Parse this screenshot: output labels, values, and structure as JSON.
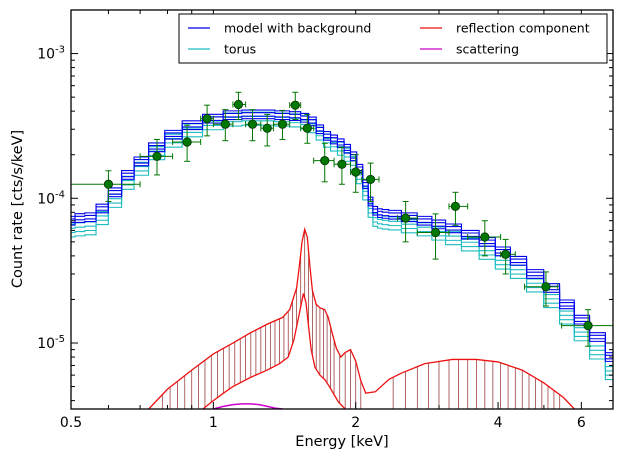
{
  "chart_data": {
    "type": "line",
    "xlabel": "Energy [keV]",
    "ylabel": "Count rate [cts/s/keV]",
    "xscale": "log",
    "yscale": "log",
    "xlim": [
      0.5,
      7.0
    ],
    "ylim": [
      3.5e-06,
      0.002
    ],
    "x_ticks": [
      {
        "value": 0.5,
        "label": "0.5"
      },
      {
        "value": 1,
        "label": "1"
      },
      {
        "value": 2,
        "label": "2"
      },
      {
        "value": 4,
        "label": "4"
      },
      {
        "value": 6,
        "label": "6"
      }
    ],
    "y_ticks": [
      {
        "value": 1e-05,
        "base": "10",
        "exp": "-5"
      },
      {
        "value": 0.0001,
        "base": "10",
        "exp": "-4"
      },
      {
        "value": 0.001,
        "base": "10",
        "exp": "-3"
      }
    ],
    "legend": {
      "placement": "top-right",
      "columns": 2,
      "entries": [
        {
          "label": "model with background",
          "color": "#0000ee"
        },
        {
          "label": "reflection component",
          "color": "#ee1111"
        },
        {
          "label": "torus",
          "color": "#1cbcc0"
        },
        {
          "label": "scattering",
          "color": "#cc00cc"
        }
      ]
    },
    "data_color": "#007700",
    "data_points": [
      {
        "x": 0.6,
        "y": 0.000125,
        "xlo": 0.5,
        "xhi": 0.7,
        "ylo": 9.5e-05,
        "yhi": 0.000155
      },
      {
        "x": 0.76,
        "y": 0.000195,
        "xlo": 0.7,
        "xhi": 0.82,
        "ylo": 0.000145,
        "yhi": 0.000255
      },
      {
        "x": 0.88,
        "y": 0.000245,
        "xlo": 0.82,
        "xhi": 0.94,
        "ylo": 0.00018,
        "yhi": 0.00032
      },
      {
        "x": 0.97,
        "y": 0.000355,
        "xlo": 0.94,
        "xhi": 1.0,
        "ylo": 0.00027,
        "yhi": 0.00044
      },
      {
        "x": 1.06,
        "y": 0.000325,
        "xlo": 1.0,
        "xhi": 1.1,
        "ylo": 0.00025,
        "yhi": 0.00041
      },
      {
        "x": 1.13,
        "y": 0.000445,
        "xlo": 1.1,
        "xhi": 1.17,
        "ylo": 0.00035,
        "yhi": 0.00054
      },
      {
        "x": 1.21,
        "y": 0.000325,
        "xlo": 1.17,
        "xhi": 1.26,
        "ylo": 0.00025,
        "yhi": 0.00041
      },
      {
        "x": 1.3,
        "y": 0.000305,
        "xlo": 1.26,
        "xhi": 1.34,
        "ylo": 0.00023,
        "yhi": 0.00038
      },
      {
        "x": 1.4,
        "y": 0.000325,
        "xlo": 1.34,
        "xhi": 1.45,
        "ylo": 0.000255,
        "yhi": 0.000405
      },
      {
        "x": 1.49,
        "y": 0.00044,
        "xlo": 1.45,
        "xhi": 1.53,
        "ylo": 0.00035,
        "yhi": 0.00054
      },
      {
        "x": 1.58,
        "y": 0.000305,
        "xlo": 1.53,
        "xhi": 1.63,
        "ylo": 0.00024,
        "yhi": 0.00038
      },
      {
        "x": 1.72,
        "y": 0.000182,
        "xlo": 1.63,
        "xhi": 1.8,
        "ylo": 0.00013,
        "yhi": 0.00024
      },
      {
        "x": 1.87,
        "y": 0.000172,
        "xlo": 1.8,
        "xhi": 1.95,
        "ylo": 0.000125,
        "yhi": 0.000225
      },
      {
        "x": 2.0,
        "y": 0.000152,
        "xlo": 1.95,
        "xhi": 2.06,
        "ylo": 0.00011,
        "yhi": 0.0002
      },
      {
        "x": 2.15,
        "y": 0.000135,
        "xlo": 2.06,
        "xhi": 2.24,
        "ylo": 9.5e-05,
        "yhi": 0.000175
      },
      {
        "x": 2.55,
        "y": 7.3e-05,
        "xlo": 2.45,
        "xhi": 2.7,
        "ylo": 5e-05,
        "yhi": 9.5e-05
      },
      {
        "x": 2.95,
        "y": 5.8e-05,
        "xlo": 2.7,
        "xhi": 3.15,
        "ylo": 3.8e-05,
        "yhi": 7.8e-05
      },
      {
        "x": 3.25,
        "y": 8.8e-05,
        "xlo": 3.15,
        "xhi": 3.45,
        "ylo": 6.5e-05,
        "yhi": 0.00011
      },
      {
        "x": 3.75,
        "y": 5.4e-05,
        "xlo": 3.45,
        "xhi": 4.05,
        "ylo": 4e-05,
        "yhi": 7e-05
      },
      {
        "x": 4.15,
        "y": 4.1e-05,
        "xlo": 4.05,
        "xhi": 4.35,
        "ylo": 3e-05,
        "yhi": 5.2e-05
      },
      {
        "x": 5.05,
        "y": 2.45e-05,
        "xlo": 4.55,
        "xhi": 5.35,
        "ylo": 1.8e-05,
        "yhi": 3.1e-05
      },
      {
        "x": 6.2,
        "y": 1.32e-05,
        "xlo": 5.45,
        "xhi": 7.0,
        "ylo": 9.5e-06,
        "yhi": 1.7e-05
      }
    ],
    "series": [
      {
        "name": "model with background",
        "color": "#0000ee",
        "x": [
          0.5,
          0.52,
          0.55,
          0.58,
          0.62,
          0.66,
          0.7,
          0.76,
          0.82,
          0.9,
          1.0,
          1.1,
          1.2,
          1.3,
          1.4,
          1.5,
          1.56,
          1.62,
          1.68,
          1.74,
          1.8,
          1.86,
          1.92,
          1.98,
          2.04,
          2.1,
          2.15,
          2.2,
          2.25,
          2.3,
          2.4,
          2.6,
          2.8,
          3.0,
          3.2,
          3.5,
          3.8,
          4.1,
          4.4,
          4.8,
          5.2,
          5.6,
          6.0,
          6.5,
          7.0
        ],
        "y": [
          7e-05,
          7.3e-05,
          7.4e-05,
          8.5e-05,
          0.00011,
          0.000145,
          0.00018,
          0.000225,
          0.000275,
          0.00032,
          0.000355,
          0.000375,
          0.00038,
          0.00038,
          0.000375,
          0.00037,
          0.00036,
          0.00034,
          0.0003,
          0.00027,
          0.000255,
          0.00024,
          0.00022,
          0.000195,
          0.00016,
          0.000125,
          9.5e-05,
          8.2e-05,
          7.9e-05,
          7.8e-05,
          7.7e-05,
          7.4e-05,
          7e-05,
          6.6e-05,
          6.2e-05,
          5.6e-05,
          5e-05,
          4.3e-05,
          3.7e-05,
          3e-05,
          2.4e-05,
          1.85e-05,
          1.45e-05,
          1.1e-05,
          8e-06
        ],
        "band_offsets": [
          -0.03,
          -0.012,
          0.012,
          0.03
        ]
      },
      {
        "name": "torus",
        "color": "#1cbcc0",
        "x": [
          0.5,
          0.52,
          0.55,
          0.58,
          0.62,
          0.66,
          0.7,
          0.76,
          0.82,
          0.9,
          1.0,
          1.1,
          1.2,
          1.3,
          1.4,
          1.5,
          1.56,
          1.62,
          1.68,
          1.74,
          1.8,
          1.86,
          1.92,
          1.98,
          2.04,
          2.1,
          2.15,
          2.2,
          2.25,
          2.3,
          2.4,
          2.6,
          2.8,
          3.0,
          3.2,
          3.5,
          3.8,
          4.1,
          4.4,
          4.8,
          5.2,
          5.6,
          6.0,
          6.5,
          7.0
        ],
        "y": [
          6e-05,
          6.1e-05,
          6.2e-05,
          7.3e-05,
          9.6e-05,
          0.000128,
          0.00016,
          0.000205,
          0.00025,
          0.000295,
          0.00033,
          0.00035,
          0.000355,
          0.000355,
          0.00035,
          0.000345,
          0.000335,
          0.000315,
          0.00028,
          0.00025,
          0.000235,
          0.00022,
          0.0002,
          0.000175,
          0.00014,
          0.000108,
          8.2e-05,
          7.1e-05,
          6.9e-05,
          6.8e-05,
          6.7e-05,
          6.4e-05,
          6.1e-05,
          5.7e-05,
          5.3e-05,
          4.8e-05,
          4.2e-05,
          3.6e-05,
          3.1e-05,
          2.5e-05,
          1.95e-05,
          1.5e-05,
          1.15e-05,
          8.6e-06,
          6.2e-06
        ],
        "band_offsets": [
          -0.045,
          -0.015,
          0.015,
          0.045
        ]
      },
      {
        "name": "reflection component",
        "color": "#ee1111",
        "x": [
          0.73,
          0.8,
          0.9,
          1.0,
          1.1,
          1.2,
          1.3,
          1.4,
          1.45,
          1.5,
          1.52,
          1.54,
          1.56,
          1.58,
          1.6,
          1.62,
          1.65,
          1.68,
          1.72,
          1.75,
          1.78,
          1.82,
          1.86,
          1.9,
          1.95,
          2.0,
          2.05,
          2.1,
          2.2,
          2.35,
          2.5,
          2.8,
          3.2,
          3.6,
          4.0,
          4.5,
          5.0,
          5.5,
          5.8
        ],
        "y": [
          3.5e-06,
          4.8e-06,
          6.5e-06,
          8.4e-06,
          1e-05,
          1.18e-05,
          1.35e-05,
          1.5e-05,
          1.7e-05,
          2.4e-05,
          3.4e-05,
          5e-05,
          6.1e-05,
          5.4e-05,
          3.4e-05,
          2.3e-05,
          1.85e-05,
          1.75e-05,
          1.7e-05,
          1.5e-05,
          1.2e-05,
          9.2e-06,
          8e-06,
          8.6e-06,
          9e-06,
          7.5e-06,
          5.5e-06,
          4.5e-06,
          4.6e-06,
          5.6e-06,
          6.2e-06,
          7.2e-06,
          7.7e-06,
          7.7e-06,
          7.4e-06,
          6.5e-06,
          5.3e-06,
          4.2e-06,
          3.5e-06
        ],
        "lower_x": [
          0.95,
          1.0,
          1.05,
          1.1,
          1.2,
          1.3,
          1.38,
          1.44,
          1.48,
          1.52,
          1.55,
          1.57,
          1.59,
          1.61,
          1.64,
          1.68,
          1.72,
          1.76,
          1.8,
          1.84,
          1.9
        ],
        "lower_y": [
          3.5e-06,
          4e-06,
          4.5e-06,
          5e-06,
          5.8e-06,
          6.5e-06,
          7.2e-06,
          8e-06,
          1.05e-05,
          1.6e-05,
          2.2e-05,
          1.9e-05,
          1.3e-05,
          9e-06,
          6.8e-06,
          6e-06,
          5.6e-06,
          5e-06,
          4.4e-06,
          3.9e-06,
          3.5e-06
        ],
        "hatch_color": "#9c4040",
        "hatch_x": [
          0.78,
          0.81,
          0.84,
          0.87,
          0.9,
          0.93,
          0.96,
          0.99,
          1.02,
          1.05,
          1.08,
          1.11,
          1.14,
          1.17,
          1.2,
          1.23,
          1.26,
          1.29,
          1.32,
          1.35,
          1.38,
          1.41,
          1.44,
          1.47,
          1.5,
          1.53,
          1.56,
          1.59,
          1.62,
          1.65,
          1.68,
          1.71,
          1.74,
          1.77,
          1.8,
          1.85,
          1.9,
          1.95,
          2.0,
          2.05,
          2.4,
          2.55,
          2.7,
          2.85,
          3.0,
          3.15,
          3.3,
          3.45,
          3.6,
          3.75,
          3.9,
          4.05,
          4.2,
          4.35,
          4.5,
          4.65,
          4.8,
          4.95,
          5.1,
          5.25,
          5.4
        ]
      },
      {
        "name": "scattering",
        "color": "#cc00cc",
        "x": [
          1.0,
          1.05,
          1.1,
          1.15,
          1.2,
          1.25,
          1.3,
          1.35,
          1.4
        ],
        "y": [
          3.5e-06,
          3.65e-06,
          3.75e-06,
          3.8e-06,
          3.8e-06,
          3.75e-06,
          3.65e-06,
          3.55e-06,
          3.5e-06
        ]
      }
    ]
  }
}
